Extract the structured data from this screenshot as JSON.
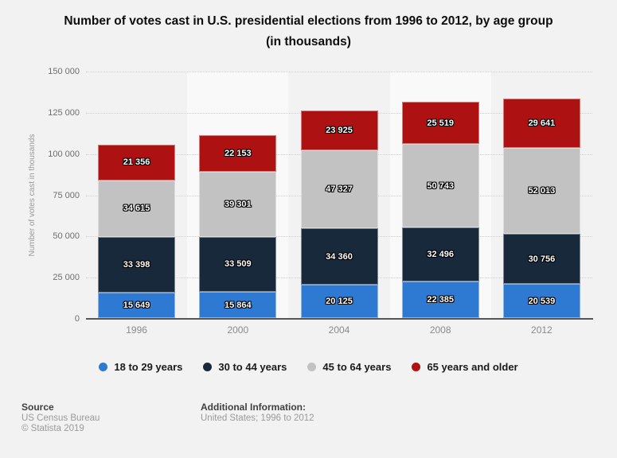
{
  "page": {
    "background": "#f2f2f2"
  },
  "title": {
    "line1": "Number of votes cast in U.S. presidential elections from 1996 to 2012, by age group",
    "line2": "(in thousands)"
  },
  "chart_data": {
    "type": "bar",
    "stacked": true,
    "categories": [
      "1996",
      "2000",
      "2004",
      "2008",
      "2012"
    ],
    "series": [
      {
        "name": "18 to 29 years",
        "color": "#2E79D2",
        "values": [
          15649,
          15864,
          20125,
          22385,
          20539
        ],
        "labels": [
          "15 649",
          "15 864",
          "20 125",
          "22 385",
          "20 539"
        ]
      },
      {
        "name": "30 to 44 years",
        "color": "#18293C",
        "values": [
          33398,
          33509,
          34360,
          32496,
          30756
        ],
        "labels": [
          "33 398",
          "33 509",
          "34 360",
          "32 496",
          "30 756"
        ]
      },
      {
        "name": "45 to 64 years",
        "color": "#C2C2C2",
        "values": [
          34615,
          39301,
          47327,
          50743,
          52013
        ],
        "labels": [
          "34 615",
          "39 301",
          "47 327",
          "50 743",
          "52 013"
        ]
      },
      {
        "name": "65 years and older",
        "color": "#AE1111",
        "values": [
          21356,
          22153,
          23925,
          25519,
          29641
        ],
        "labels": [
          "21 356",
          "22 153",
          "23 925",
          "25 519",
          "29 641"
        ]
      }
    ],
    "xlabel": "",
    "ylabel": "Number of votes cast in thousands",
    "ylim": [
      0,
      150000
    ],
    "ytick_interval": 25000,
    "yticks": [
      "0",
      "25 000",
      "50 000",
      "75 000",
      "100 000",
      "125 000",
      "150 000"
    ],
    "grid": "horizontal-dotted",
    "legend_position": "bottom",
    "band_highlight_color": "#f9f9f9"
  },
  "footer": {
    "source_label": "Source",
    "source_value": "US Census Bureau",
    "copyright": "© Statista 2019",
    "additional_label": "Additional Information:",
    "additional_value": "United States; 1996 to 2012"
  }
}
